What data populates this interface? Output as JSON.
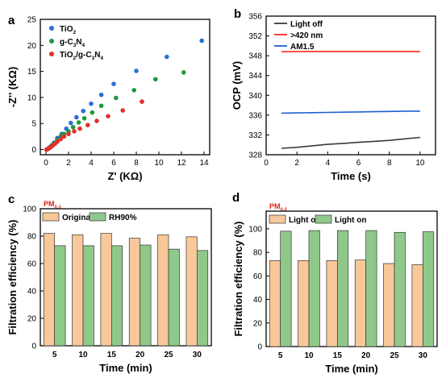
{
  "colors": {
    "axis": "#000000",
    "tio2": "#2b6fd6",
    "gcn": "#1f9a3a",
    "composite": "#e0302a",
    "light_off_line": "#3a3a3a",
    "gt420_line": "#ff2a1a",
    "am15_line": "#1f5fd0",
    "bar_original": "#f8c89a",
    "bar_rh90": "#8fc98a",
    "bar_edge": "#333333",
    "pm_label": "#e0201a"
  },
  "chart_data": [
    {
      "panel": "a",
      "type": "scatter",
      "xlabel": "Z' (KΩ)",
      "ylabel": "-Z'' (KΩ)",
      "xlim": [
        -0.5,
        14.5
      ],
      "ylim": [
        -1,
        25
      ],
      "xticks": [
        0,
        2,
        4,
        6,
        8,
        10,
        12,
        14
      ],
      "yticks": [
        0,
        5,
        10,
        15,
        20,
        25
      ],
      "legend_position": "top-left",
      "series": [
        {
          "name_parts": [
            [
              "TiO",
              ""
            ],
            [
              "2",
              "sub"
            ]
          ],
          "x": [
            0.05,
            0.15,
            0.3,
            0.5,
            0.7,
            1.0,
            1.4,
            1.8,
            2.2,
            2.7,
            3.3,
            4.0,
            4.9,
            6.0,
            8.0,
            10.7,
            13.8
          ],
          "y": [
            0.0,
            0.1,
            0.4,
            0.8,
            1.3,
            2.2,
            3.0,
            4.0,
            5.1,
            6.2,
            7.4,
            8.8,
            10.5,
            12.6,
            15.1,
            17.8,
            20.9
          ]
        },
        {
          "name_parts": [
            [
              "g-C",
              ""
            ],
            [
              "3",
              "sub"
            ],
            [
              "N",
              ""
            ],
            [
              "4",
              "sub"
            ]
          ],
          "x": [
            0.05,
            0.15,
            0.3,
            0.5,
            0.7,
            1.0,
            1.3,
            1.6,
            2.0,
            2.4,
            2.9,
            3.4,
            4.1,
            4.9,
            6.2,
            7.8,
            9.7,
            12.2
          ],
          "y": [
            0.0,
            0.1,
            0.3,
            0.7,
            1.1,
            1.8,
            2.5,
            3.0,
            3.5,
            4.3,
            5.2,
            6.0,
            7.1,
            8.4,
            9.9,
            11.4,
            13.5,
            14.8
          ]
        },
        {
          "name_parts": [
            [
              "TiO",
              ""
            ],
            [
              "2",
              "sub"
            ],
            [
              "/g-C",
              ""
            ],
            [
              "3",
              "sub"
            ],
            [
              "N",
              ""
            ],
            [
              "4",
              "sub"
            ]
          ],
          "x": [
            0.05,
            0.15,
            0.3,
            0.45,
            0.6,
            0.8,
            1.0,
            1.3,
            1.6,
            2.0,
            2.5,
            3.0,
            3.7,
            4.5,
            5.5,
            6.8,
            8.5
          ],
          "y": [
            0.0,
            0.1,
            0.3,
            0.5,
            0.8,
            1.1,
            1.5,
            2.0,
            2.5,
            3.0,
            3.5,
            4.0,
            4.7,
            5.5,
            6.4,
            7.5,
            9.2
          ]
        }
      ]
    },
    {
      "panel": "b",
      "type": "line",
      "xlabel": "Time (s)",
      "ylabel": "OCP (mV)",
      "xlim": [
        0,
        11
      ],
      "ylim": [
        328,
        356
      ],
      "xticks": [
        0,
        2,
        4,
        6,
        8,
        10
      ],
      "yticks": [
        328,
        332,
        336,
        340,
        344,
        348,
        352,
        356
      ],
      "legend_position": "top-left",
      "series": [
        {
          "name": "Light off",
          "x": [
            1,
            2,
            3,
            4,
            5,
            6,
            7,
            8,
            9,
            10
          ],
          "y": [
            329.3,
            329.5,
            329.8,
            330.1,
            330.3,
            330.5,
            330.7,
            330.9,
            331.2,
            331.5
          ]
        },
        {
          "name": ">420 nm",
          "x": [
            1,
            2,
            3,
            4,
            5,
            6,
            7,
            8,
            9,
            10
          ],
          "y": [
            348.8,
            348.85,
            348.85,
            348.85,
            348.85,
            348.85,
            348.85,
            348.85,
            348.85,
            348.85
          ]
        },
        {
          "name": "AM1.5",
          "x": [
            1,
            2,
            3,
            4,
            5,
            6,
            7,
            8,
            9,
            10
          ],
          "y": [
            336.4,
            336.45,
            336.5,
            336.55,
            336.6,
            336.65,
            336.7,
            336.75,
            336.8,
            336.8
          ]
        }
      ]
    },
    {
      "panel": "c",
      "type": "bar",
      "annotation_parts": [
        [
          "PM",
          ""
        ],
        [
          "0.3",
          "sub"
        ]
      ],
      "xlabel": "Time (min)",
      "ylabel": "Filtration efficiency (%)",
      "ylim": [
        0,
        100
      ],
      "yticks": [
        0,
        20,
        40,
        60,
        80,
        100
      ],
      "categories": [
        "5",
        "10",
        "15",
        "20",
        "25",
        "30"
      ],
      "legend_position": "top-left",
      "series": [
        {
          "name": "Original",
          "values": [
            82,
            81,
            82,
            78.5,
            81,
            79.5
          ]
        },
        {
          "name": "RH90%",
          "values": [
            73,
            73,
            73,
            73.5,
            70.5,
            69.5
          ]
        }
      ]
    },
    {
      "panel": "d",
      "type": "bar",
      "annotation_parts": [
        [
          "PM",
          ""
        ],
        [
          "0.3",
          "sub"
        ]
      ],
      "xlabel": "Time (min)",
      "ylabel": "Filtration efficiency (%)",
      "ylim": [
        0,
        115
      ],
      "yticks": [
        0,
        20,
        40,
        60,
        80,
        100
      ],
      "categories": [
        "5",
        "10",
        "15",
        "20",
        "25",
        "30"
      ],
      "legend_position": "top-left",
      "series": [
        {
          "name": "Light off",
          "values": [
            73,
            73,
            73,
            73.5,
            70.5,
            69.5
          ]
        },
        {
          "name": "Light on",
          "values": [
            98,
            98.5,
            98.5,
            98.5,
            97,
            97.5
          ]
        }
      ]
    }
  ]
}
